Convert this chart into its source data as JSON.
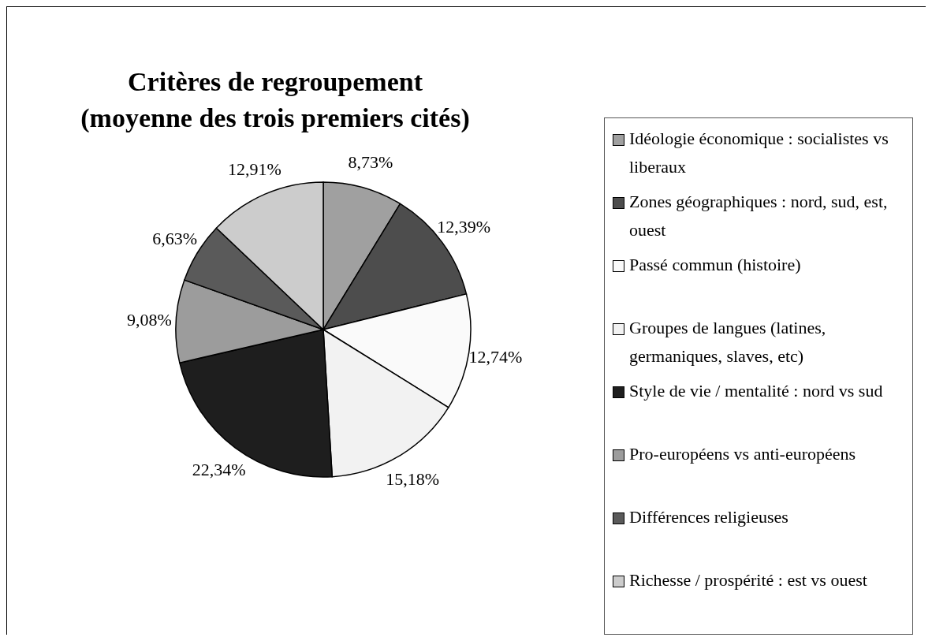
{
  "chart_data": {
    "type": "pie",
    "title": "Critères de regroupement\n(moyenne des trois premiers cités)",
    "categories": [
      "Idéologie économique : socialistes vs liberaux",
      "Zones géographiques : nord, sud, est, ouest",
      "Passé commun (histoire)",
      "Groupes de langues (latines, germaniques, slaves, etc)",
      "Style de vie / mentalité : nord vs sud",
      "Pro-européens vs anti-européens",
      "Différences religieuses",
      "Richesse / prospérité : est vs ouest"
    ],
    "values": [
      8.73,
      12.39,
      12.74,
      15.18,
      22.34,
      9.08,
      6.63,
      12.91
    ],
    "value_labels": [
      "8,73%",
      "12,39%",
      "12,74%",
      "15,18%",
      "22,34%",
      "9,08%",
      "6,63%",
      "12,91%"
    ],
    "colors": [
      "#a0a0a0",
      "#4d4d4d",
      "#fafafa",
      "#f2f2f2",
      "#1e1e1e",
      "#9c9c9c",
      "#5a5a5a",
      "#cccccc"
    ],
    "legend": "right"
  }
}
